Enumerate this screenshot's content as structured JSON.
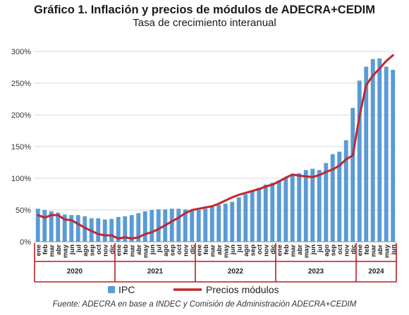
{
  "chart_data": {
    "type": "bar+line",
    "title": "Gráfico 1. Inflación y precios de módulos de ADECRA+CEDIM",
    "subtitle": "Tasa de crecimiento interanual",
    "ylim": [
      0,
      300
    ],
    "yticks": [
      "0%",
      "50%",
      "100%",
      "150%",
      "200%",
      "250%",
      "300%"
    ],
    "grid": true,
    "legend_position": "bottom",
    "month_labels": [
      "ene",
      "feb",
      "mar",
      "abr",
      "may",
      "jun",
      "jul",
      "ago",
      "sep",
      "oct",
      "nov",
      "dic"
    ],
    "years": [
      "2020",
      "2021",
      "2022",
      "2023",
      "2024"
    ],
    "months_last_year": 6,
    "series": [
      {
        "name": "IPC",
        "kind": "bar",
        "color": "#5b9bd5",
        "values": [
          52,
          50,
          48,
          46,
          43,
          42,
          42,
          40,
          37,
          37,
          35,
          36,
          39,
          40,
          42,
          45,
          48,
          50,
          51,
          51,
          52,
          52,
          51,
          50,
          50,
          52,
          55,
          58,
          60,
          63,
          70,
          75,
          80,
          85,
          90,
          93,
          97,
          100,
          104,
          108,
          113,
          115,
          113,
          124,
          138,
          142,
          160,
          211,
          254,
          276,
          288,
          289,
          276,
          271
        ]
      },
      {
        "name": "Precios módulos",
        "kind": "line",
        "color": "#c0282d",
        "values": [
          42,
          38,
          42,
          42,
          35,
          34,
          28,
          22,
          17,
          12,
          10,
          10,
          5,
          7,
          5,
          7,
          12,
          15,
          20,
          26,
          32,
          38,
          45,
          50,
          52,
          54,
          56,
          60,
          65,
          70,
          74,
          77,
          80,
          83,
          87,
          90,
          95,
          101,
          106,
          104,
          103,
          102,
          105,
          110,
          114,
          120,
          130,
          136,
          198,
          247,
          262,
          273,
          285,
          294
        ]
      }
    ],
    "source": "Fuente: ADECRA en base a INDEC y Comisión de Administración ADECRA+CEDIM"
  }
}
